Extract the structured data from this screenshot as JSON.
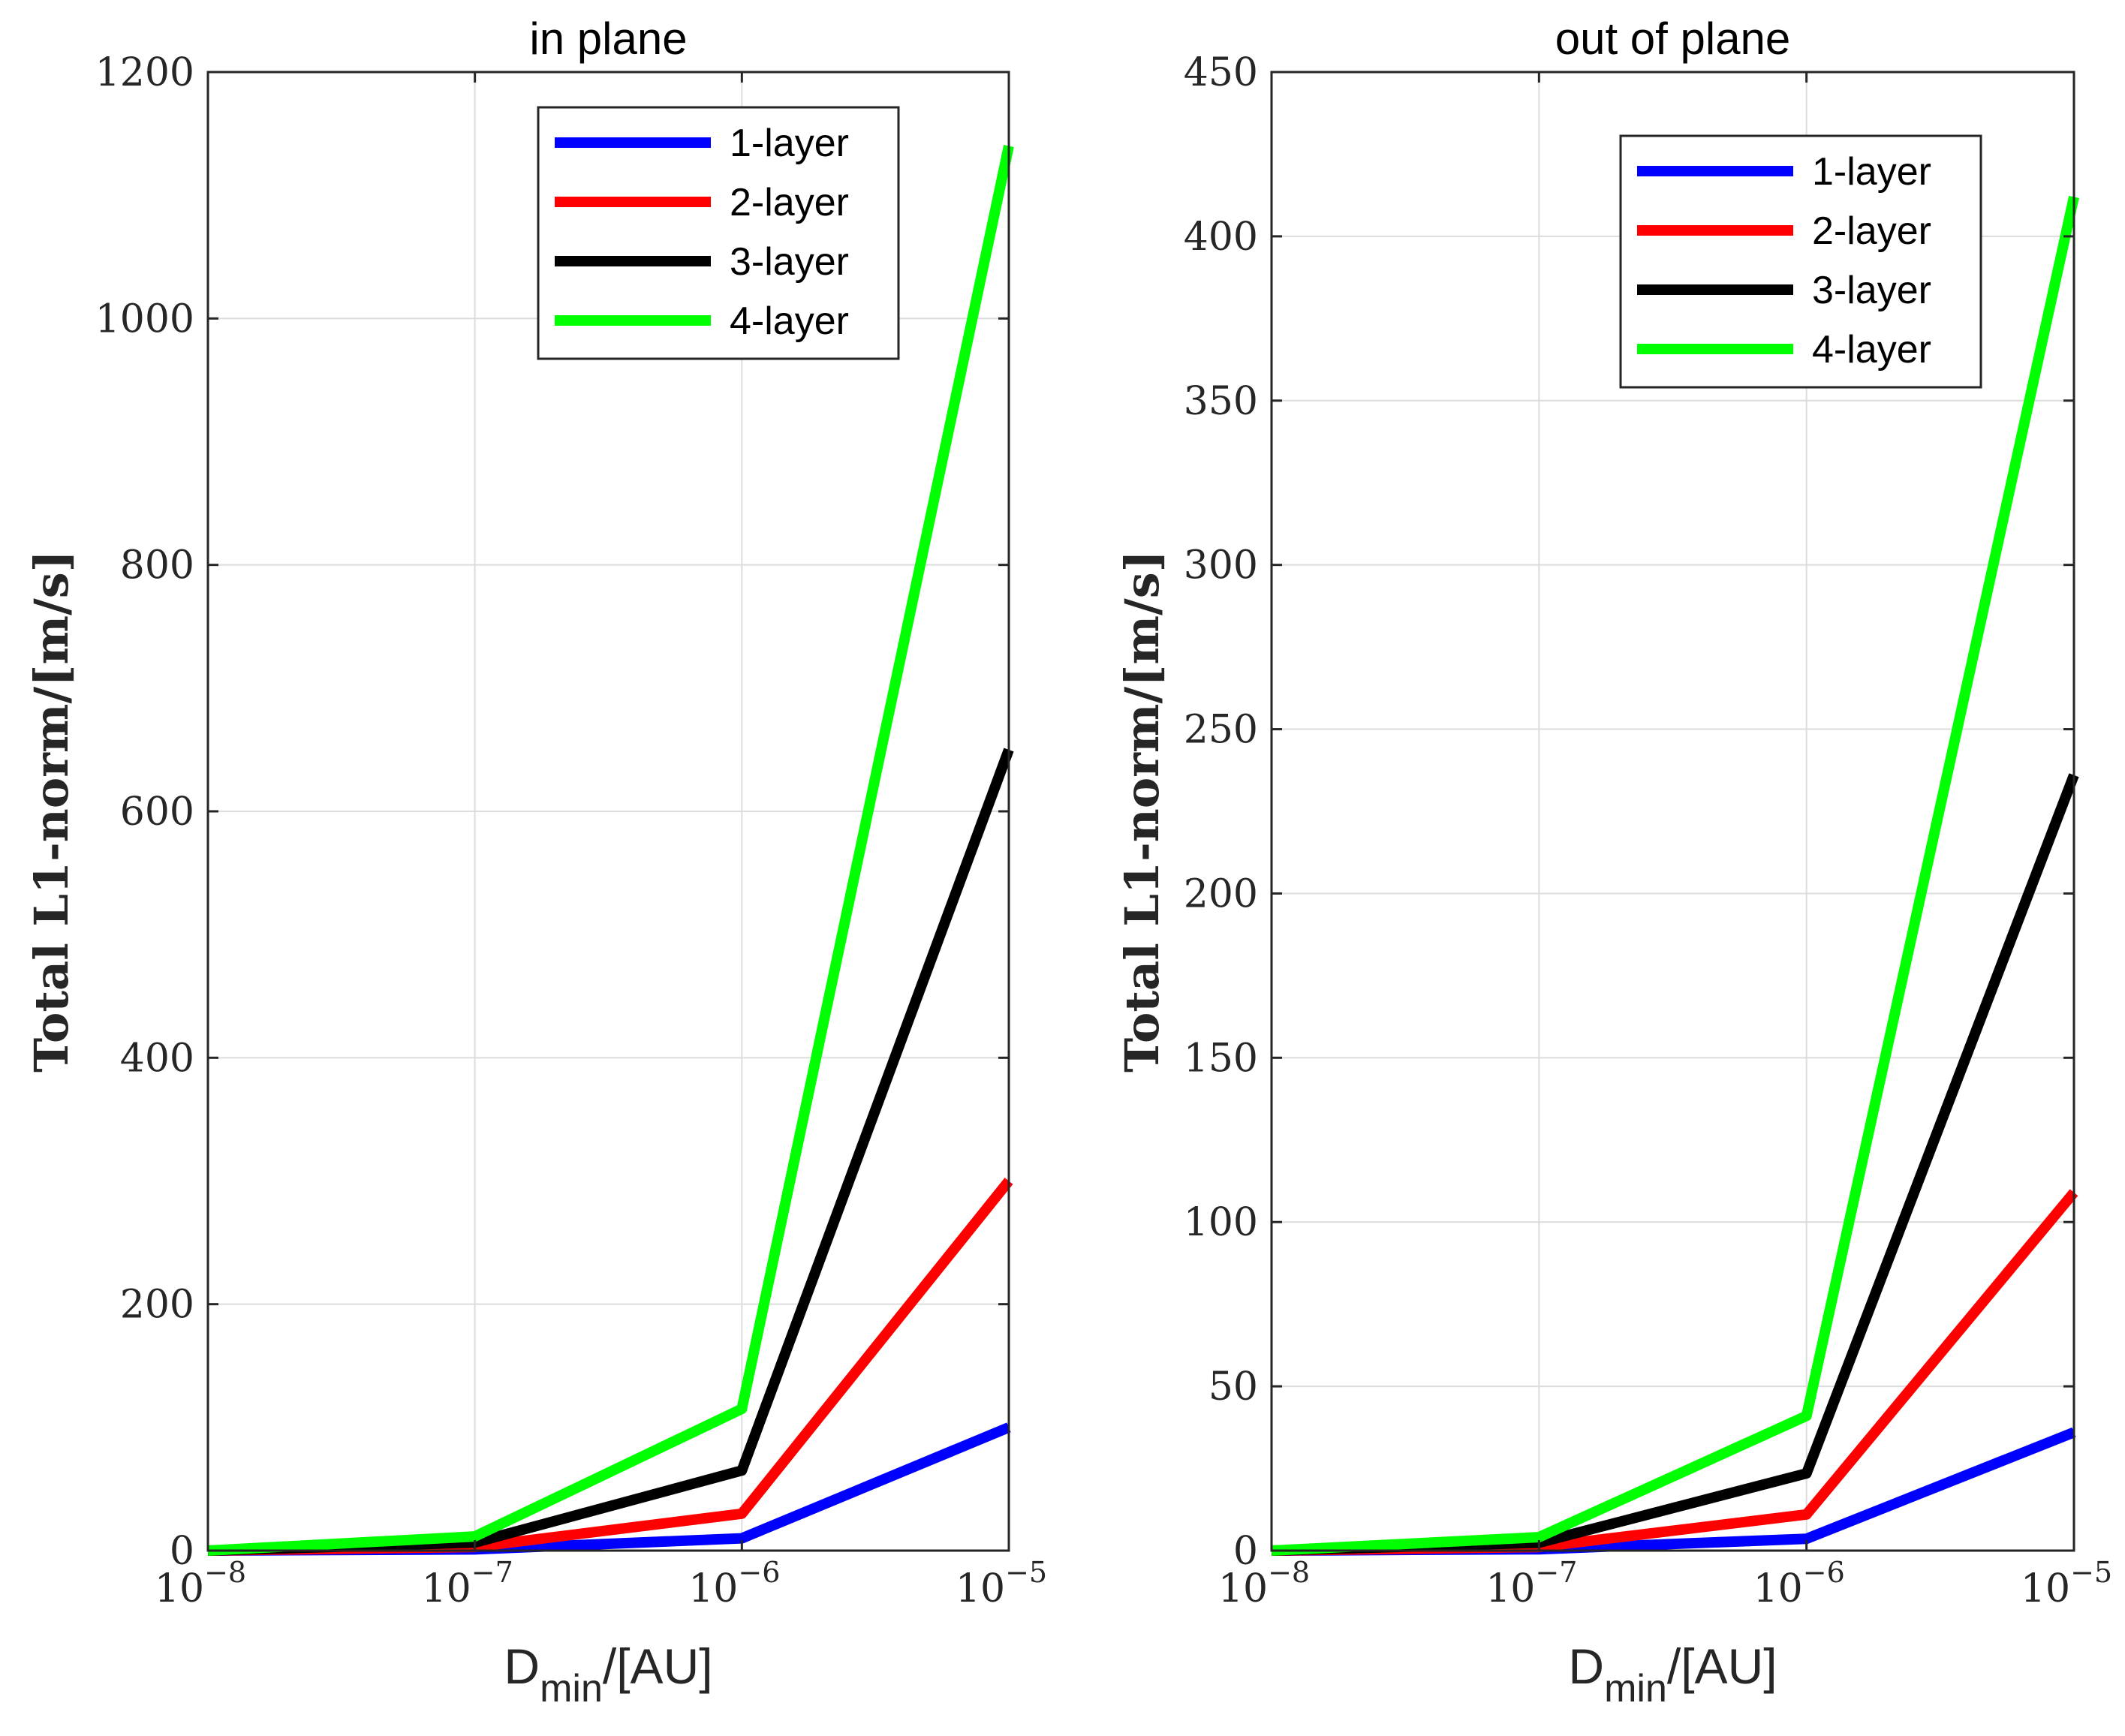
{
  "chart_data": [
    {
      "type": "line",
      "title": "in plane",
      "xscale": "log",
      "x": [
        1e-08,
        1e-07,
        1e-06,
        1e-05
      ],
      "x_ticks": [
        {
          "base": "10",
          "exp": "−8"
        },
        {
          "base": "10",
          "exp": "−7"
        },
        {
          "base": "10",
          "exp": "−6"
        },
        {
          "base": "10",
          "exp": "−5"
        }
      ],
      "xlabel": {
        "main": "D",
        "sub": "min",
        "rest": "/[AU]"
      },
      "ylabel": "Total L1-norm/[m/s]",
      "ylim": [
        0,
        1200
      ],
      "y_ticks": [
        "0",
        "200",
        "400",
        "600",
        "800",
        "1000",
        "1200"
      ],
      "grid": true,
      "legend_position": "top-right",
      "series": [
        {
          "name": "1-layer",
          "color": "#0000ff",
          "values": [
            0,
            1,
            10,
            100
          ]
        },
        {
          "name": "2-layer",
          "color": "#ff0000",
          "values": [
            0,
            3,
            30,
            300
          ]
        },
        {
          "name": "3-layer",
          "color": "#000000",
          "values": [
            0,
            6.5,
            65,
            650
          ]
        },
        {
          "name": "4-layer",
          "color": "#00ff00",
          "values": [
            0,
            11.5,
            115,
            1140
          ]
        }
      ]
    },
    {
      "type": "line",
      "title": "out of plane",
      "xscale": "log",
      "x": [
        1e-08,
        1e-07,
        1e-06,
        1e-05
      ],
      "x_ticks": [
        {
          "base": "10",
          "exp": "−8"
        },
        {
          "base": "10",
          "exp": "−7"
        },
        {
          "base": "10",
          "exp": "−6"
        },
        {
          "base": "10",
          "exp": "−5"
        }
      ],
      "xlabel": {
        "main": "D",
        "sub": "min",
        "rest": "/[AU]"
      },
      "ylabel": "Total L1-norm/[m/s]",
      "ylim": [
        0,
        450
      ],
      "y_ticks": [
        "0",
        "50",
        "100",
        "150",
        "200",
        "250",
        "300",
        "350",
        "400",
        "450"
      ],
      "grid": true,
      "legend_position": "top-right",
      "series": [
        {
          "name": "1-layer",
          "color": "#0000ff",
          "values": [
            0,
            0.4,
            3.6,
            36
          ]
        },
        {
          "name": "2-layer",
          "color": "#ff0000",
          "values": [
            0,
            1.1,
            11,
            109
          ]
        },
        {
          "name": "3-layer",
          "color": "#000000",
          "values": [
            0,
            2.4,
            23.5,
            236
          ]
        },
        {
          "name": "4-layer",
          "color": "#00ff00",
          "values": [
            0,
            4.1,
            41,
            412
          ]
        }
      ]
    }
  ]
}
